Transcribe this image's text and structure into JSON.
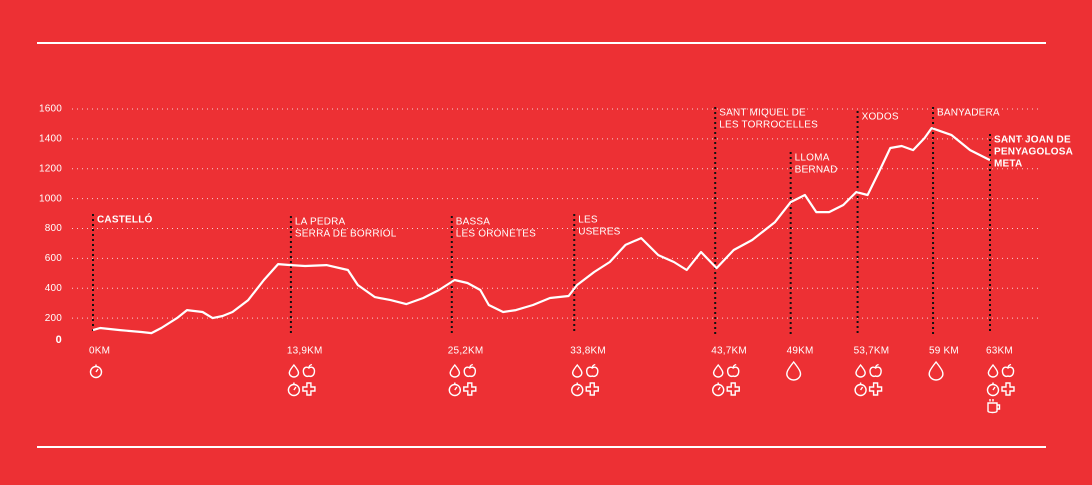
{
  "chart_data": {
    "type": "line",
    "color": "#ffffff",
    "grid": true,
    "xlim": [
      0,
      63
    ],
    "ylim": [
      0,
      1600
    ],
    "yticks": [
      0,
      200,
      400,
      600,
      800,
      1000,
      1200,
      1400,
      1600
    ],
    "x": [
      0,
      0.5,
      1.9,
      3.4,
      4.1,
      4.8,
      5.9,
      6.6,
      7.7,
      8.4,
      9.1,
      9.8,
      10.9,
      12,
      13,
      13.9,
      14.9,
      16.4,
      17.9,
      18.6,
      19.8,
      20.9,
      22,
      23.2,
      24.3,
      25.4,
      26.3,
      27.2,
      27.8,
      28.8,
      29.7,
      30.9,
      32.1,
      33.4,
      34,
      35.2,
      36.3,
      37.4,
      38.5,
      39.7,
      40.8,
      41.7,
      42.7,
      43.8,
      45,
      46.3,
      47.9,
      49,
      50,
      50.8,
      51.7,
      52.7,
      53.6,
      54.4,
      55.2,
      56,
      56.8,
      57.6,
      58.4,
      58.9,
      60.3,
      61.6,
      63
    ],
    "values": [
      120,
      134,
      120,
      107,
      100,
      134,
      200,
      254,
      241,
      200,
      214,
      241,
      321,
      455,
      562,
      555,
      549,
      555,
      522,
      422,
      341,
      321,
      294,
      335,
      388,
      455,
      435,
      388,
      288,
      241,
      254,
      288,
      335,
      348,
      422,
      509,
      576,
      690,
      736,
      622,
      576,
      522,
      643,
      535,
      656,
      723,
      843,
      977,
      1024,
      910,
      910,
      957,
      1044,
      1024,
      1178,
      1339,
      1352,
      1325,
      1405,
      1472,
      1425,
      1325,
      1258
    ],
    "checkpoints": [
      {
        "km": 0,
        "label": "0KM",
        "name": [
          "CASTELLÓ"
        ]
      },
      {
        "km": 13.9,
        "label": "13,9KM",
        "name": [
          "LA PEDRA",
          "SERRA DE BORRIOL"
        ]
      },
      {
        "km": 25.2,
        "label": "25,2KM",
        "name": [
          "BASSA",
          "LES ORONETES"
        ]
      },
      {
        "km": 33.8,
        "label": "33,8KM",
        "name": [
          "LES",
          "USERES"
        ]
      },
      {
        "km": 43.7,
        "label": "43,7KM",
        "name": [
          "SANT MIQUEL DE",
          "LES TORROCELLES"
        ]
      },
      {
        "km": 49,
        "label": "49KM",
        "name": [
          "LLOMA",
          "BERNAD"
        ]
      },
      {
        "km": 53.7,
        "label": "53,7KM",
        "name": [
          "XODOS"
        ]
      },
      {
        "km": 59,
        "label": "59 KM",
        "name": [
          "BANYADERA"
        ]
      },
      {
        "km": 63,
        "label": "63KM",
        "name": [
          "SANT JOAN DE",
          "PENYAGOLOSA",
          "META"
        ]
      }
    ]
  }
}
